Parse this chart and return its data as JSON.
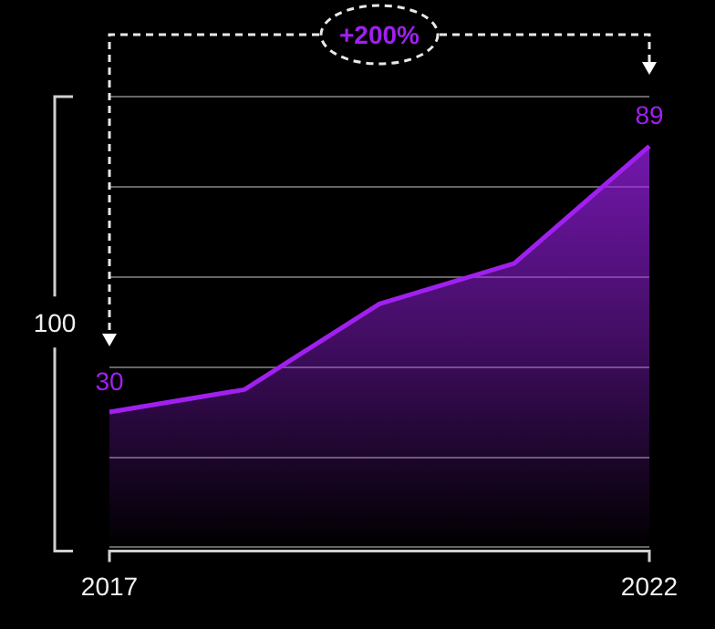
{
  "chart_data": {
    "type": "area",
    "categories": [
      "2017",
      null,
      null,
      null,
      "2022"
    ],
    "series": [
      {
        "color": "#a020f0",
        "values": [
          30,
          35,
          54,
          63,
          89
        ],
        "value_labels": [
          "30",
          null,
          null,
          null,
          "89"
        ]
      }
    ],
    "ylim": [
      0,
      100
    ],
    "yticks": [
      {
        "value": 0,
        "label": null
      },
      {
        "value": 20,
        "label": null
      },
      {
        "value": 40,
        "label": null
      },
      {
        "value": 60,
        "label": null
      },
      {
        "value": 80,
        "label": null
      },
      {
        "value": 100,
        "label": null
      }
    ],
    "grid": "y",
    "legend": false,
    "tick_labels": "x",
    "annotations": [
      "+200%",
      "100"
    ]
  }
}
